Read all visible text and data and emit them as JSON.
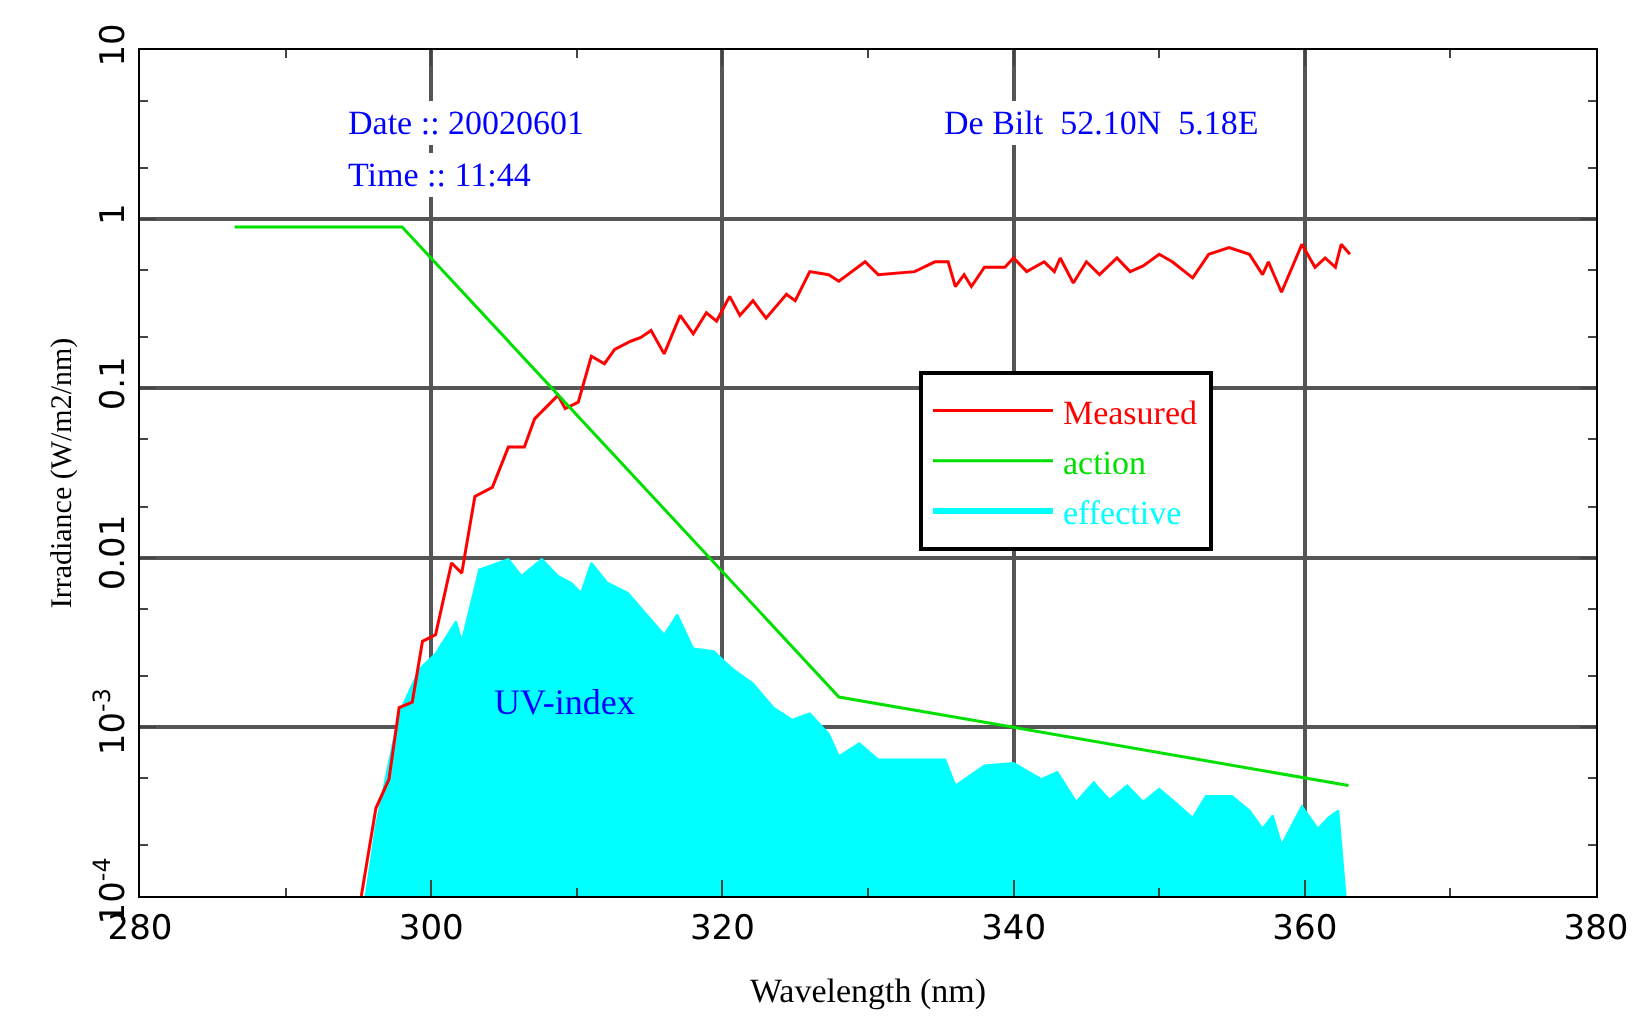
{
  "chart_data": {
    "type": "line",
    "xlabel": "Wavelength (nm)",
    "ylabel": "Irradiance (W/m2/nm)",
    "log": "y",
    "grid": true,
    "legend": "right",
    "marker": "none",
    "line_style": "solid",
    "xlim": [
      280,
      380
    ],
    "xticks": [
      280,
      300,
      320,
      340,
      360,
      380
    ],
    "ylim": [
      0.0001,
      10
    ],
    "yticks": [
      {
        "value": 0.0001,
        "label": "10$^{-4}$"
      },
      {
        "value": 0.001,
        "label": "10$^{-3}$"
      },
      0.01,
      0.1,
      1,
      10
    ],
    "annotations": [
      "Date :: 20020601",
      "Time :: 11:44",
      "De Bilt  52.10N  5.18E",
      "UV-index"
    ],
    "series": [
      {
        "name": "Measured",
        "color": "#ff0000",
        "x": [
          295.2,
          296.2,
          297.1,
          297.8,
          298.7,
          299.4,
          300.3,
          301.4,
          302.1,
          303.0,
          304.2,
          305.3,
          306.4,
          307.1,
          308.7,
          309.2,
          310.1,
          311.0,
          311.9,
          312.6,
          313.7,
          314.4,
          315.1,
          316.0,
          317.1,
          318.0,
          318.9,
          319.6,
          320.5,
          321.2,
          322.1,
          323.0,
          324.4,
          325.0,
          326.0,
          327.3,
          328.0,
          329.8,
          330.7,
          333.2,
          334.6,
          335.5,
          336.0,
          336.6,
          337.1,
          338.0,
          339.4,
          340.0,
          340.9,
          342.1,
          342.8,
          343.2,
          344.1,
          345.0,
          345.9,
          347.1,
          348.0,
          348.9,
          350.0,
          350.9,
          352.3,
          353.4,
          354.8,
          356.2,
          357.1,
          357.5,
          358.4,
          359.8,
          360.7,
          361.4,
          362.1,
          362.5,
          363.1
        ],
        "values": [
          0.0001,
          0.00033,
          0.00049,
          0.0013,
          0.0014,
          0.0032,
          0.0035,
          0.0093,
          0.0081,
          0.023,
          0.026,
          0.045,
          0.045,
          0.066,
          0.091,
          0.076,
          0.083,
          0.155,
          0.14,
          0.17,
          0.19,
          0.2,
          0.22,
          0.16,
          0.27,
          0.21,
          0.28,
          0.25,
          0.35,
          0.27,
          0.33,
          0.26,
          0.36,
          0.33,
          0.49,
          0.47,
          0.43,
          0.56,
          0.47,
          0.49,
          0.56,
          0.56,
          0.4,
          0.47,
          0.4,
          0.52,
          0.52,
          0.59,
          0.49,
          0.56,
          0.49,
          0.59,
          0.42,
          0.56,
          0.47,
          0.59,
          0.49,
          0.53,
          0.62,
          0.56,
          0.45,
          0.62,
          0.68,
          0.62,
          0.47,
          0.56,
          0.37,
          0.71,
          0.52,
          0.59,
          0.52,
          0.71,
          0.62
        ]
      },
      {
        "name": "action",
        "color": "#00e000",
        "x": [
          286.5,
          298,
          328,
          363
        ],
        "values": [
          0.9,
          0.9,
          0.0015,
          0.00045
        ]
      },
      {
        "name": "effective",
        "type": "area",
        "color": "#00ffff",
        "x": [
          295.5,
          296.2,
          297.8,
          299.2,
          300.3,
          301.7,
          302.1,
          303.3,
          305.3,
          306.2,
          307.6,
          308.7,
          309.6,
          310.3,
          311.0,
          312.1,
          313.5,
          314.8,
          316.0,
          316.9,
          318.0,
          319.4,
          320.7,
          322.1,
          323.5,
          324.8,
          326.0,
          327.3,
          328.0,
          329.4,
          330.7,
          333.0,
          335.3,
          336.0,
          338.0,
          340.0,
          341.9,
          343.0,
          344.3,
          345.5,
          346.6,
          347.8,
          348.9,
          350.0,
          350.9,
          352.3,
          353.2,
          355.0,
          356.2,
          357.1,
          357.8,
          358.4,
          359.8,
          360.9,
          361.6,
          362.3,
          362.8
        ],
        "values": [
          0.0001,
          0.00026,
          0.0012,
          0.0022,
          0.0027,
          0.0042,
          0.0032,
          0.0085,
          0.0098,
          0.0078,
          0.0098,
          0.0078,
          0.0071,
          0.0062,
          0.0093,
          0.0071,
          0.0062,
          0.0046,
          0.0035,
          0.0046,
          0.0029,
          0.0028,
          0.0022,
          0.0018,
          0.0013,
          0.0011,
          0.0012,
          0.00091,
          0.00067,
          0.0008,
          0.00064,
          0.00064,
          0.00064,
          0.00045,
          0.00059,
          0.00061,
          0.00049,
          0.00054,
          0.00036,
          0.00047,
          0.00037,
          0.00045,
          0.00036,
          0.00043,
          0.00037,
          0.00029,
          0.00039,
          0.00039,
          0.00032,
          0.00025,
          0.0003,
          0.0002,
          0.00034,
          0.00025,
          0.00029,
          0.00032,
          0.0001
        ]
      }
    ]
  }
}
